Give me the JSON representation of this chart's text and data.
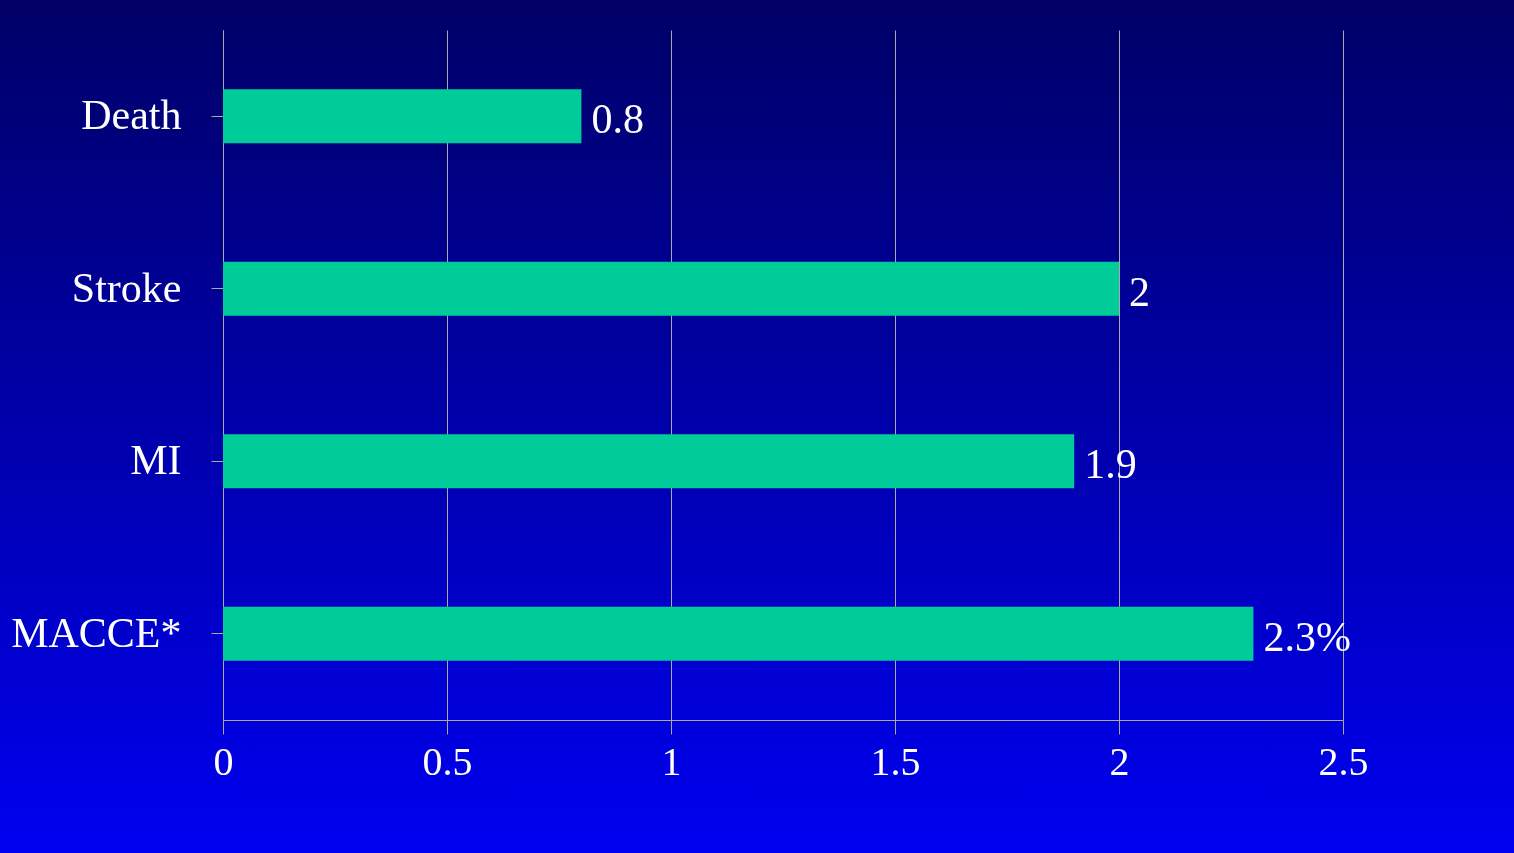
{
  "chart_data": {
    "type": "bar",
    "orientation": "horizontal",
    "categories": [
      "Death",
      "Stroke",
      "MI",
      "MACCE*"
    ],
    "values": [
      0.8,
      2,
      1.9,
      2.3
    ],
    "value_labels": [
      "0.8",
      "2",
      "1.9",
      "2.3%"
    ],
    "color": "#00cc99",
    "xlim": [
      0,
      2.5
    ],
    "xticks": [
      0,
      0.5,
      1,
      1.5,
      2,
      2.5
    ],
    "grid": true
  }
}
